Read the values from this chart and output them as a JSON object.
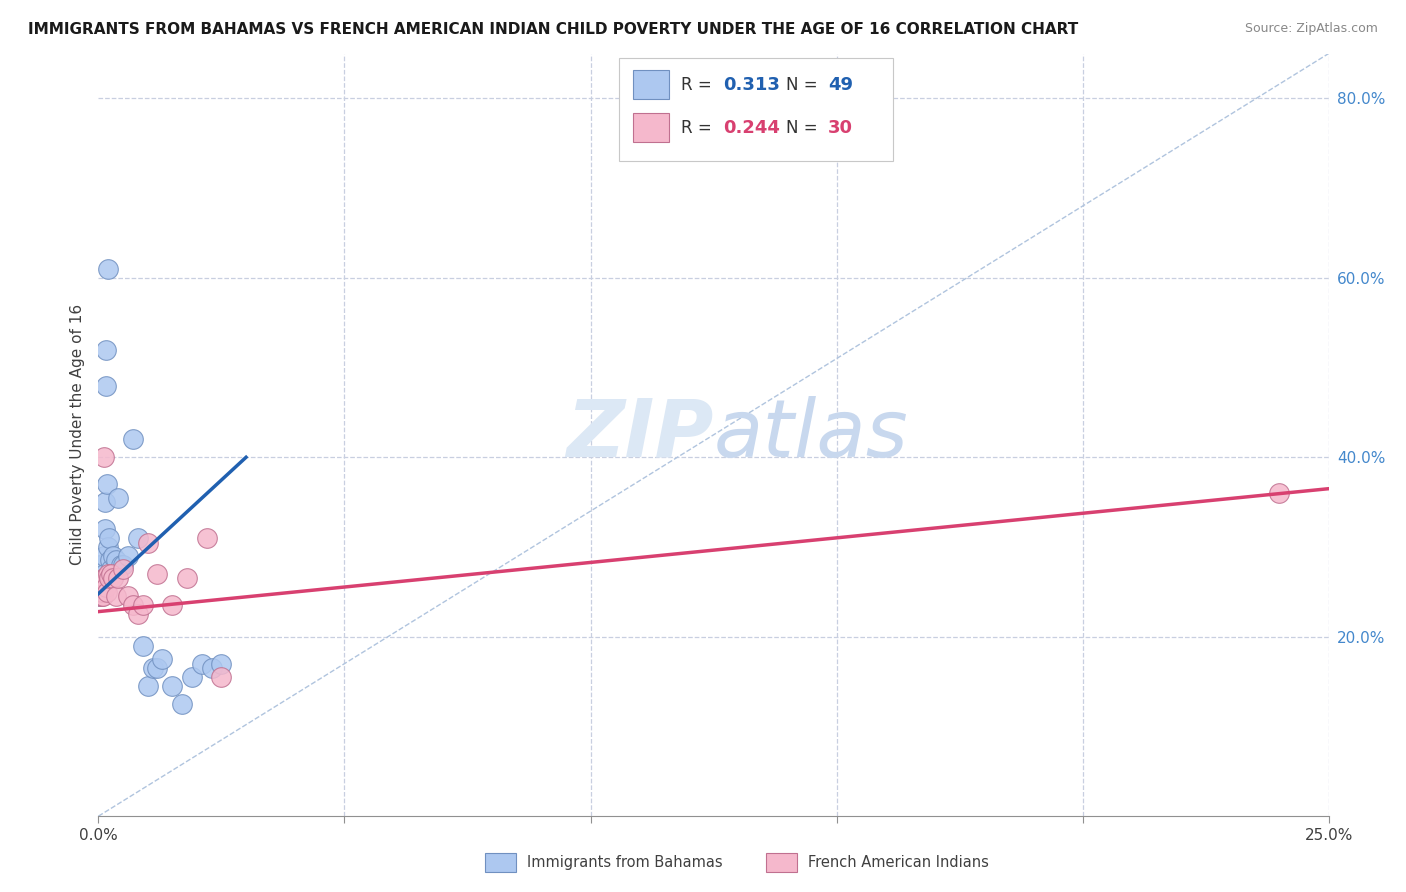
{
  "title": "IMMIGRANTS FROM BAHAMAS VS FRENCH AMERICAN INDIAN CHILD POVERTY UNDER THE AGE OF 16 CORRELATION CHART",
  "source": "Source: ZipAtlas.com",
  "ylabel": "Child Poverty Under the Age of 16",
  "right_yticks": [
    20.0,
    40.0,
    60.0,
    80.0
  ],
  "legend_label_blue": "Immigrants from Bahamas",
  "legend_label_pink": "French American Indians",
  "blue_r": "0.313",
  "blue_n": "49",
  "pink_r": "0.244",
  "pink_n": "30",
  "blue_scatter_x": [
    0.0002,
    0.0003,
    0.0004,
    0.0005,
    0.0005,
    0.0006,
    0.0006,
    0.0007,
    0.0007,
    0.0008,
    0.0008,
    0.0009,
    0.001,
    0.001,
    0.001,
    0.0011,
    0.0012,
    0.0013,
    0.0014,
    0.0015,
    0.0016,
    0.0018,
    0.002,
    0.002,
    0.0022,
    0.0023,
    0.0025,
    0.0027,
    0.003,
    0.003,
    0.0032,
    0.0035,
    0.004,
    0.0045,
    0.005,
    0.006,
    0.007,
    0.008,
    0.009,
    0.01,
    0.011,
    0.012,
    0.013,
    0.015,
    0.017,
    0.019,
    0.021,
    0.023,
    0.025
  ],
  "blue_scatter_y": [
    0.26,
    0.28,
    0.245,
    0.255,
    0.245,
    0.255,
    0.25,
    0.26,
    0.255,
    0.25,
    0.26,
    0.255,
    0.26,
    0.25,
    0.255,
    0.27,
    0.29,
    0.32,
    0.35,
    0.48,
    0.52,
    0.37,
    0.3,
    0.61,
    0.31,
    0.285,
    0.275,
    0.265,
    0.265,
    0.29,
    0.27,
    0.285,
    0.355,
    0.28,
    0.28,
    0.29,
    0.42,
    0.31,
    0.19,
    0.145,
    0.165,
    0.165,
    0.175,
    0.145,
    0.125,
    0.155,
    0.17,
    0.165,
    0.17
  ],
  "pink_scatter_x": [
    0.0002,
    0.0004,
    0.0005,
    0.0006,
    0.0007,
    0.0008,
    0.001,
    0.0011,
    0.0012,
    0.0014,
    0.0016,
    0.0018,
    0.002,
    0.0022,
    0.0025,
    0.003,
    0.0035,
    0.004,
    0.005,
    0.006,
    0.007,
    0.008,
    0.009,
    0.01,
    0.012,
    0.015,
    0.018,
    0.022,
    0.025,
    0.24
  ],
  "pink_scatter_y": [
    0.255,
    0.245,
    0.25,
    0.255,
    0.245,
    0.25,
    0.245,
    0.4,
    0.265,
    0.265,
    0.255,
    0.25,
    0.27,
    0.265,
    0.27,
    0.265,
    0.245,
    0.265,
    0.275,
    0.245,
    0.235,
    0.225,
    0.235,
    0.305,
    0.27,
    0.235,
    0.265,
    0.31,
    0.155,
    0.36
  ],
  "blue_line_x": [
    0.0,
    0.03
  ],
  "blue_line_y": [
    0.248,
    0.4
  ],
  "pink_line_x": [
    0.0,
    0.25
  ],
  "pink_line_y": [
    0.228,
    0.365
  ],
  "diag_line_x": [
    0.0,
    0.25
  ],
  "diag_line_y": [
    0.0,
    0.85
  ],
  "blue_color": "#adc8f0",
  "pink_color": "#f5b8cc",
  "blue_line_color": "#2060b0",
  "pink_line_color": "#d84070",
  "diag_line_color": "#b0c4de",
  "bg_color": "#ffffff",
  "grid_color": "#c8cfe0",
  "watermark_color": "#dce8f5",
  "xmin": 0.0,
  "xmax": 0.25,
  "ymin": 0.0,
  "ymax": 0.85
}
